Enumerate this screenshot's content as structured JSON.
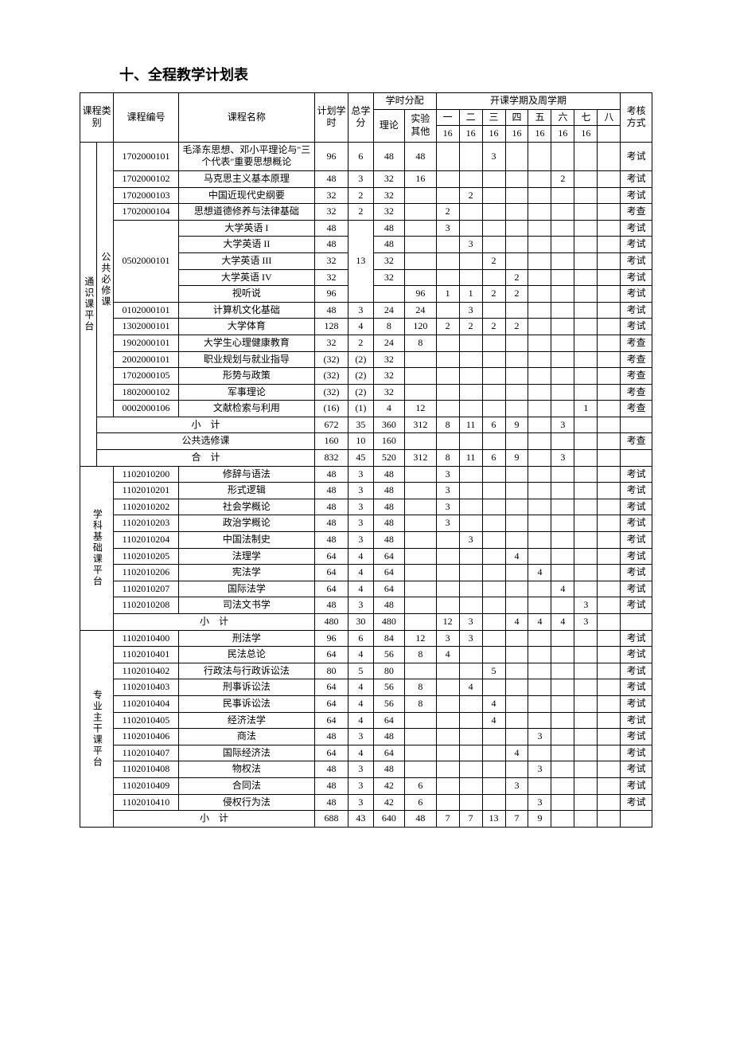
{
  "page_title": "十、全程教学计划表",
  "header": {
    "course_cat": "课程类别",
    "course_code": "课程编号",
    "course_name": "课程名称",
    "plan_hours": "计划学时",
    "total_credit": "总学分",
    "hours_dist": "学时分配",
    "theory": "理论",
    "exp_other": "实验其他",
    "term_week": "开课学期及周学期",
    "t1": "一",
    "t2": "二",
    "t3": "三",
    "t4": "四",
    "t5": "五",
    "t6": "六",
    "t7": "七",
    "t8": "八",
    "w16": "16",
    "assess": "考核方式"
  },
  "cats": {
    "general": "通识课平台",
    "public_req": "公共必修课",
    "discipline": "学科基础课平台",
    "major": "专业主干课平台"
  },
  "labels": {
    "subtotal": "小　计",
    "public_elective": "公共选修课",
    "total": "合　计"
  },
  "sec1": {
    "r0": {
      "code": "1702000101",
      "name": "毛泽东思想、邓小平理论与\"三个代表\"重要思想概论",
      "plan": "96",
      "credit": "6",
      "theory": "48",
      "exp": "48",
      "t3": "3",
      "assess": "考试"
    },
    "r1": {
      "code": "1702000102",
      "name": "马克思主义基本原理",
      "plan": "48",
      "credit": "3",
      "theory": "32",
      "exp": "16",
      "t6": "2",
      "assess": "考试"
    },
    "r2": {
      "code": "1702000103",
      "name": "中国近现代史纲要",
      "plan": "32",
      "credit": "2",
      "theory": "32",
      "t2": "2",
      "assess": "考试"
    },
    "r3": {
      "code": "1702000104",
      "name": "思想道德修养与法律基础",
      "plan": "32",
      "credit": "2",
      "theory": "32",
      "t1": "2",
      "assess": "考查"
    },
    "eng_code": "0502000101",
    "eng_credit": "13",
    "r4": {
      "name": "大学英语 I",
      "plan": "48",
      "theory": "48",
      "t1": "3",
      "assess": "考试"
    },
    "r5": {
      "name": "大学英语 II",
      "plan": "48",
      "theory": "48",
      "t2": "3",
      "assess": "考试"
    },
    "r6": {
      "name": "大学英语 III",
      "plan": "32",
      "theory": "32",
      "t3": "2",
      "assess": "考试"
    },
    "r7": {
      "name": "大学英语 IV",
      "plan": "32",
      "theory": "32",
      "t4": "2",
      "assess": "考试"
    },
    "r8": {
      "name": "视听说",
      "plan": "96",
      "exp": "96",
      "t1": "1",
      "t2": "1",
      "t3": "2",
      "t4": "2",
      "assess": "考试"
    },
    "r9": {
      "code": "0102000101",
      "name": "计算机文化基础",
      "plan": "48",
      "credit": "3",
      "theory": "24",
      "exp": "24",
      "t2": "3",
      "assess": "考试"
    },
    "r10": {
      "code": "1302000101",
      "name": "大学体育",
      "plan": "128",
      "credit": "4",
      "theory": "8",
      "exp": "120",
      "t1": "2",
      "t2": "2",
      "t3": "2",
      "t4": "2",
      "assess": "考试"
    },
    "r11": {
      "code": "1902000101",
      "name": "大学生心理健康教育",
      "plan": "32",
      "credit": "2",
      "theory": "24",
      "exp": "8",
      "assess": "考查"
    },
    "r12": {
      "code": "2002000101",
      "name": "职业规划与就业指导",
      "plan": "(32)",
      "credit": "(2)",
      "theory": "32",
      "assess": "考查"
    },
    "r13": {
      "code": "1702000105",
      "name": "形势与政策",
      "plan": "(32)",
      "credit": "(2)",
      "theory": "32",
      "assess": "考查"
    },
    "r14": {
      "code": "1802000102",
      "name": "军事理论",
      "plan": "(32)",
      "credit": "(2)",
      "theory": "32",
      "assess": "考查"
    },
    "r15": {
      "code": "0002000106",
      "name": "文献检索与利用",
      "plan": "(16)",
      "credit": "(1)",
      "theory": "4",
      "exp": "12",
      "t7": "1",
      "assess": "考查"
    },
    "sub": {
      "plan": "672",
      "credit": "35",
      "theory": "360",
      "exp": "312",
      "t1": "8",
      "t2": "11",
      "t3": "6",
      "t4": "9",
      "t6": "3"
    },
    "elective": {
      "plan": "160",
      "credit": "10",
      "theory": "160",
      "assess": "考查"
    },
    "total": {
      "plan": "832",
      "credit": "45",
      "theory": "520",
      "exp": "312",
      "t1": "8",
      "t2": "11",
      "t3": "6",
      "t4": "9",
      "t6": "3"
    }
  },
  "sec2": {
    "r0": {
      "code": "1102010200",
      "name": "修辞与语法",
      "plan": "48",
      "credit": "3",
      "theory": "48",
      "t1": "3",
      "assess": "考试"
    },
    "r1": {
      "code": "1102010201",
      "name": "形式逻辑",
      "plan": "48",
      "credit": "3",
      "theory": "48",
      "t1": "3",
      "assess": "考试"
    },
    "r2": {
      "code": "1102010202",
      "name": "社会学概论",
      "plan": "48",
      "credit": "3",
      "theory": "48",
      "t1": "3",
      "assess": "考试"
    },
    "r3": {
      "code": "1102010203",
      "name": "政治学概论",
      "plan": "48",
      "credit": "3",
      "theory": "48",
      "t1": "3",
      "assess": "考试"
    },
    "r4": {
      "code": "1102010204",
      "name": "中国法制史",
      "plan": "48",
      "credit": "3",
      "theory": "48",
      "t2": "3",
      "assess": "考试"
    },
    "r5": {
      "code": "1102010205",
      "name": "法理学",
      "plan": "64",
      "credit": "4",
      "theory": "64",
      "t4": "4",
      "assess": "考试"
    },
    "r6": {
      "code": "1102010206",
      "name": "宪法学",
      "plan": "64",
      "credit": "4",
      "theory": "64",
      "t5": "4",
      "assess": "考试"
    },
    "r7": {
      "code": "1102010207",
      "name": "国际法学",
      "plan": "64",
      "credit": "4",
      "theory": "64",
      "t6": "4",
      "assess": "考试"
    },
    "r8": {
      "code": "1102010208",
      "name": "司法文书学",
      "plan": "48",
      "credit": "3",
      "theory": "48",
      "t7": "3",
      "assess": "考试"
    },
    "sub": {
      "plan": "480",
      "credit": "30",
      "theory": "480",
      "t1": "12",
      "t2": "3",
      "t4": "4",
      "t5": "4",
      "t6": "4",
      "t7": "3"
    }
  },
  "sec3": {
    "r0": {
      "code": "1102010400",
      "name": "刑法学",
      "plan": "96",
      "credit": "6",
      "theory": "84",
      "exp": "12",
      "t1": "3",
      "t2": "3",
      "assess": "考试"
    },
    "r1": {
      "code": "1102010401",
      "name": "民法总论",
      "plan": "64",
      "credit": "4",
      "theory": "56",
      "exp": "8",
      "t1": "4",
      "assess": "考试"
    },
    "r2": {
      "code": "1102010402",
      "name": "行政法与行政诉讼法",
      "plan": "80",
      "credit": "5",
      "theory": "80",
      "t3": "5",
      "assess": "考试"
    },
    "r3": {
      "code": "1102010403",
      "name": "刑事诉讼法",
      "plan": "64",
      "credit": "4",
      "theory": "56",
      "exp": "8",
      "t2": "4",
      "assess": "考试"
    },
    "r4": {
      "code": "1102010404",
      "name": "民事诉讼法",
      "plan": "64",
      "credit": "4",
      "theory": "56",
      "exp": "8",
      "t3": "4",
      "assess": "考试"
    },
    "r5": {
      "code": "1102010405",
      "name": "经济法学",
      "plan": "64",
      "credit": "4",
      "theory": "64",
      "t3": "4",
      "assess": "考试"
    },
    "r6": {
      "code": "1102010406",
      "name": "商法",
      "plan": "48",
      "credit": "3",
      "theory": "48",
      "t5": "3",
      "assess": "考试"
    },
    "r7": {
      "code": "1102010407",
      "name": "国际经济法",
      "plan": "64",
      "credit": "4",
      "theory": "64",
      "t4": "4",
      "assess": "考试"
    },
    "r8": {
      "code": "1102010408",
      "name": "物权法",
      "plan": "48",
      "credit": "3",
      "theory": "48",
      "t5": "3",
      "assess": "考试"
    },
    "r9": {
      "code": "1102010409",
      "name": "合同法",
      "plan": "48",
      "credit": "3",
      "theory": "42",
      "exp": "6",
      "t4": "3",
      "assess": "考试"
    },
    "r10": {
      "code": "1102010410",
      "name": "侵权行为法",
      "plan": "48",
      "credit": "3",
      "theory": "42",
      "exp": "6",
      "t5": "3",
      "assess": "考试"
    },
    "sub": {
      "plan": "688",
      "credit": "43",
      "theory": "640",
      "exp": "48",
      "t1": "7",
      "t2": "7",
      "t3": "13",
      "t4": "7",
      "t5": "9"
    }
  }
}
